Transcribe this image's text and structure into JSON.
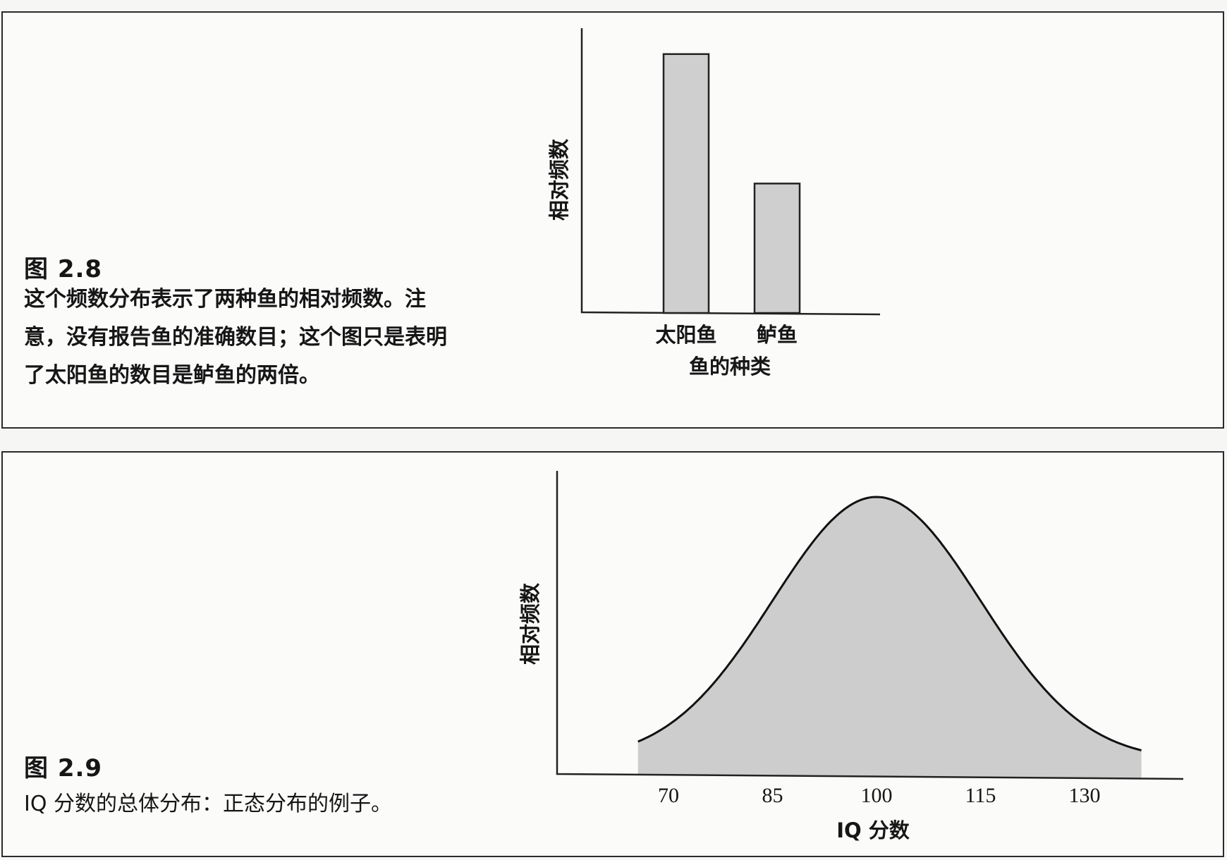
{
  "figures": [
    {
      "label": "图 2.8",
      "caption_lines": [
        "这个频数分布表示了两种鱼的相对频数。注",
        "意，没有报告鱼的准确数目；这个图只是表明",
        "了太阳鱼的数目是鲈鱼的两倍。"
      ]
    },
    {
      "label": "图 2.9",
      "caption_lines": [
        "IQ 分数的总体分布：正态分布的例子。"
      ]
    }
  ],
  "chart_data": [
    {
      "type": "bar",
      "categories": [
        "太阳鱼",
        "鲈鱼"
      ],
      "values": [
        2,
        1
      ],
      "xlabel": "鱼的种类",
      "ylabel": "相对频数",
      "ylim": [
        0,
        2.2
      ],
      "grid": false,
      "legend": "none",
      "bar_color": "#cfcfcf"
    },
    {
      "type": "area",
      "distribution": "normal",
      "mean": 100,
      "sd": 15,
      "x_ticks": [
        70,
        85,
        100,
        115,
        130
      ],
      "xlim": [
        62,
        140
      ],
      "xlabel": "IQ 分数",
      "ylabel": "相对频数",
      "grid": false,
      "legend": "none",
      "fill_color": "#cdcdcd"
    }
  ]
}
